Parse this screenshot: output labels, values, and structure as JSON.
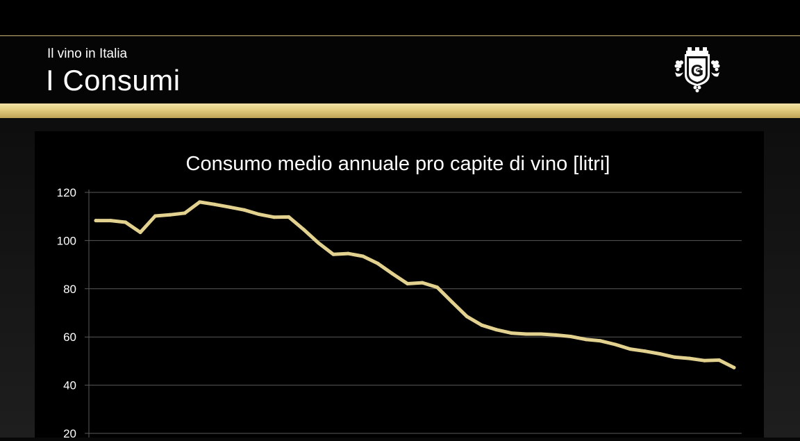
{
  "header": {
    "subtitle": "Il vino in Italia",
    "title": "I Consumi"
  },
  "logo": {
    "icon": "castle-monogram-grape-crest-icon"
  },
  "colors": {
    "gold": "#e2cb7d",
    "line": "#e2d18f",
    "background": "#000000",
    "text": "#ffffff",
    "grid": "#5a5a5a"
  },
  "chart_data": {
    "type": "line",
    "title": "Consumo medio annuale pro capite di vino [litri]",
    "xlabel": "",
    "ylabel": "",
    "ylim": [
      0,
      120
    ],
    "y_ticks": [
      20,
      40,
      60,
      80,
      100,
      120
    ],
    "grid": true,
    "legend": "none",
    "series": [
      {
        "values": [
          108.3,
          108.3,
          107.6,
          103.4,
          110.2,
          110.7,
          111.4,
          116.0,
          115.0,
          113.9,
          112.7,
          110.9,
          109.7,
          109.8,
          104.6,
          99.0,
          94.3,
          94.6,
          93.5,
          90.5,
          86.2,
          82.1,
          82.5,
          80.6,
          74.5,
          68.5,
          64.9,
          63.0,
          61.6,
          61.2,
          61.2,
          60.8,
          60.2,
          59.0,
          58.4,
          56.9,
          55.0,
          54.1,
          53.0,
          51.6,
          51.1,
          50.2,
          50.4,
          47.3
        ]
      }
    ]
  }
}
